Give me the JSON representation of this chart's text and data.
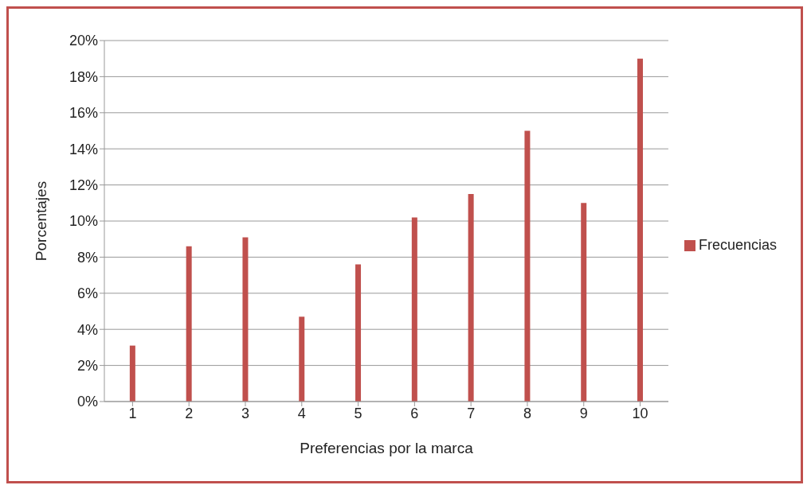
{
  "chart_data": {
    "type": "bar",
    "xlabel": "Preferencias por la marca",
    "ylabel": "Porcentajes",
    "categories": [
      "1",
      "2",
      "3",
      "4",
      "5",
      "6",
      "7",
      "8",
      "9",
      "10"
    ],
    "series": [
      {
        "name": "Frecuencias",
        "color": "#c0504d",
        "values": [
          3.1,
          8.6,
          9.1,
          4.7,
          7.6,
          10.2,
          11.5,
          15.0,
          11.0,
          19.0
        ]
      }
    ],
    "ylim": [
      0,
      20
    ],
    "yticks": [
      {
        "value": 0,
        "label": "0%"
      },
      {
        "value": 2,
        "label": "2%"
      },
      {
        "value": 4,
        "label": "4%"
      },
      {
        "value": 6,
        "label": "6%"
      },
      {
        "value": 8,
        "label": "8%"
      },
      {
        "value": 10,
        "label": "10%"
      },
      {
        "value": 12,
        "label": "12%"
      },
      {
        "value": 14,
        "label": "14%"
      },
      {
        "value": 16,
        "label": "16%"
      },
      {
        "value": 18,
        "label": "18%"
      },
      {
        "value": 20,
        "label": "20%"
      }
    ],
    "grid": "y",
    "legend": "right"
  }
}
